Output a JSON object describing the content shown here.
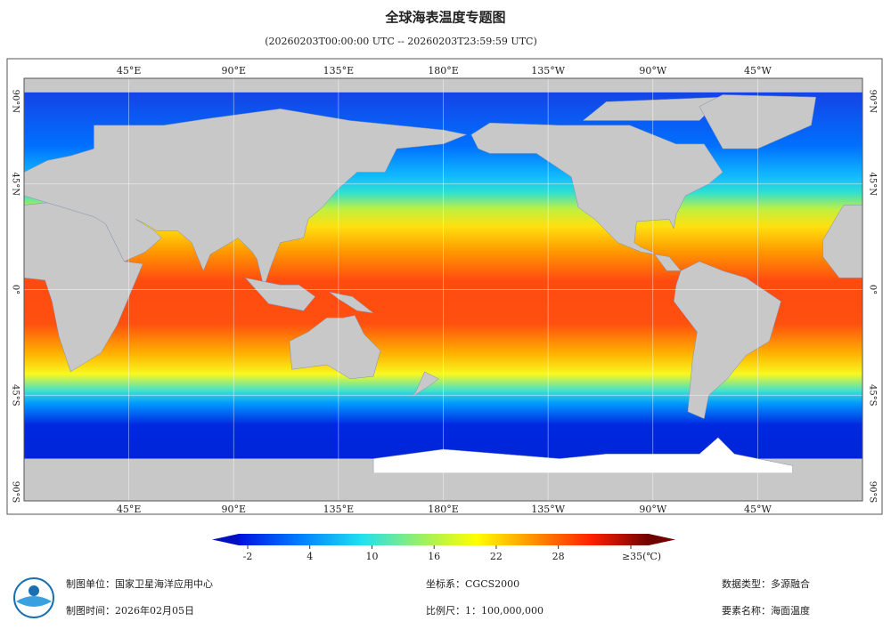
{
  "header": {
    "title": "全球海表温度专题图",
    "time_range": "(20260203T00:00:00 UTC -- 20260203T23:59:59 UTC)"
  },
  "map": {
    "lon_labels": [
      "45°E",
      "90°E",
      "135°E",
      "180°E",
      "135°W",
      "90°W",
      "45°W"
    ],
    "lat_labels": [
      "90°N",
      "45°N",
      "0°",
      "45°S",
      "90°S"
    ]
  },
  "colorbar": {
    "ticks": [
      -2,
      4,
      10,
      16,
      22,
      28,
      {
        "value": 35,
        "label": "≥35(℃)"
      }
    ]
  },
  "footer": {
    "producer": "制图单位：国家卫星海洋应用中心",
    "date": "制图时间：2026年02月05日",
    "crs": "坐标系：CGCS2000",
    "scale": "比例尺：1：100,000,000",
    "data_type": "数据类型：多源融合",
    "element": "要素名称：海面温度"
  }
}
